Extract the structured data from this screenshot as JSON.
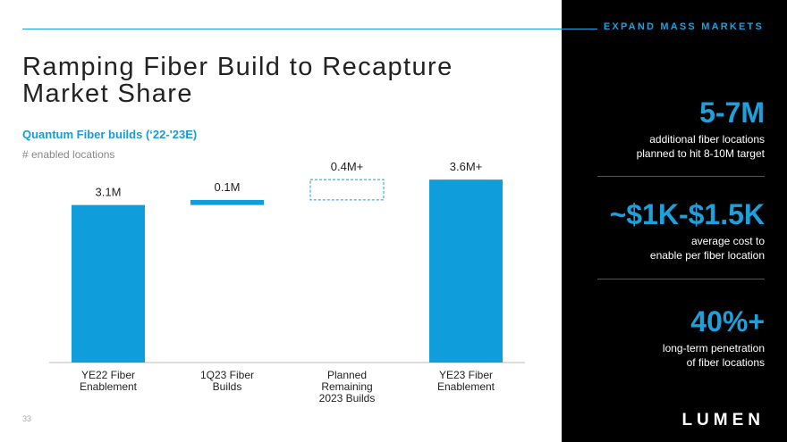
{
  "header": {
    "section_tag": "EXPAND MASS MARKETS",
    "title_line1": "Ramping Fiber Build to Recapture",
    "title_line2": "Market Share",
    "subtitle": "Quantum Fiber builds (‘22-'23E)",
    "unit_label": "# enabled locations"
  },
  "page_number": "33",
  "chart_data": {
    "type": "bar",
    "subtype": "waterfall",
    "title": "Quantum Fiber builds (‘22-'23E)",
    "ylabel": "# enabled locations",
    "categories": [
      "YE22 Fiber Enablement",
      "1Q23 Fiber Builds",
      "Planned Remaining 2023 Builds",
      "YE23 Fiber Enablement"
    ],
    "category_lines": [
      [
        "YE22 Fiber",
        "Enablement"
      ],
      [
        "1Q23 Fiber",
        "Builds"
      ],
      [
        "Planned",
        "Remaining",
        "2023 Builds"
      ],
      [
        "YE23 Fiber",
        "Enablement"
      ]
    ],
    "values": [
      3.1,
      0.1,
      0.4,
      3.6
    ],
    "bases": [
      0,
      3.1,
      3.2,
      0
    ],
    "kinds": [
      "total",
      "increment",
      "planned",
      "total"
    ],
    "data_labels": [
      "3.1M",
      "0.1M",
      "0.4M+",
      "3.6M+"
    ],
    "units": "millions of locations",
    "ylim": [
      0,
      3.65
    ],
    "color": "#0f9ddb"
  },
  "stats": [
    {
      "value": "5-7M",
      "line1": "additional fiber locations",
      "line2": "planned to hit 8-10M target"
    },
    {
      "value": "~$1K-$1.5K",
      "line1": "average cost to",
      "line2": "enable per fiber location"
    },
    {
      "value": "40%+",
      "line1": "long-term penetration",
      "line2": "of fiber locations"
    }
  ],
  "brand": {
    "logo_text": "LUMEN",
    "accent_color": "#1ea0dc"
  }
}
